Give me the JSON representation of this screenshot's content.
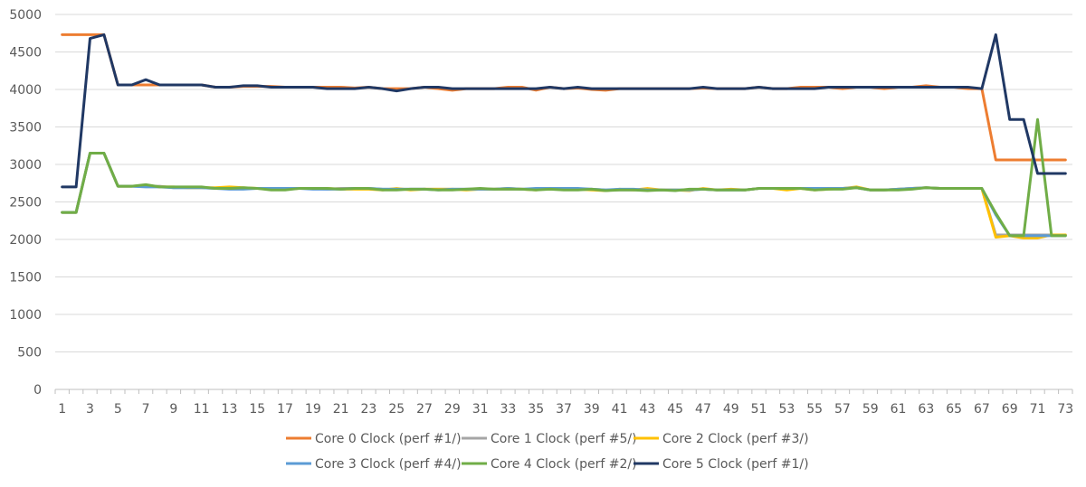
{
  "chart_data": {
    "type": "line",
    "title": "",
    "xlabel": "",
    "ylabel": "",
    "x": [
      1,
      2,
      3,
      4,
      5,
      6,
      7,
      8,
      9,
      10,
      11,
      12,
      13,
      14,
      15,
      16,
      17,
      18,
      19,
      20,
      21,
      22,
      23,
      24,
      25,
      26,
      27,
      28,
      29,
      30,
      31,
      32,
      33,
      34,
      35,
      36,
      37,
      38,
      39,
      40,
      41,
      42,
      43,
      44,
      45,
      46,
      47,
      48,
      49,
      50,
      51,
      52,
      53,
      54,
      55,
      56,
      57,
      58,
      59,
      60,
      61,
      62,
      63,
      64,
      65,
      66,
      67,
      68,
      69,
      70,
      71,
      72,
      73
    ],
    "x_tick_labels": [
      "1",
      "3",
      "5",
      "7",
      "9",
      "11",
      "13",
      "15",
      "17",
      "19",
      "21",
      "23",
      "25",
      "27",
      "29",
      "31",
      "33",
      "35",
      "37",
      "39",
      "41",
      "43",
      "45",
      "47",
      "49",
      "51",
      "53",
      "55",
      "57",
      "59",
      "61",
      "63",
      "65",
      "67",
      "69",
      "71",
      "73"
    ],
    "ylim": [
      0,
      5000
    ],
    "y_ticks": [
      "0",
      "500",
      "1000",
      "1500",
      "2000",
      "2500",
      "3000",
      "3500",
      "4000",
      "4500",
      "5000"
    ],
    "grid": "horizontal",
    "legend_position": "bottom",
    "series": [
      {
        "name": "Core 0 Clock (perf #1/)",
        "color": "#ED7D31",
        "values": [
          4730,
          4730,
          4730,
          4730,
          4060,
          4060,
          4060,
          4060,
          4060,
          4060,
          4060,
          4030,
          4030,
          4040,
          4040,
          4040,
          4030,
          4030,
          4030,
          4030,
          4030,
          4020,
          4030,
          4010,
          4010,
          4010,
          4030,
          4010,
          3990,
          4010,
          4010,
          4010,
          4030,
          4030,
          3990,
          4030,
          4010,
          4020,
          4000,
          3990,
          4010,
          4010,
          4010,
          4010,
          4010,
          4010,
          4020,
          4010,
          4010,
          4010,
          4030,
          4010,
          4010,
          4030,
          4030,
          4030,
          4010,
          4030,
          4030,
          4010,
          4030,
          4030,
          4050,
          4030,
          4030,
          4010,
          4010,
          3060,
          3060,
          3060,
          3060,
          3060,
          3060
        ]
      },
      {
        "name": "Core 1 Clock (perf #5/)",
        "color": "#A5A5A5",
        "values": [
          2360,
          2360,
          3150,
          3150,
          2710,
          2710,
          2710,
          2710,
          2690,
          2690,
          2690,
          2680,
          2680,
          2680,
          2680,
          2670,
          2670,
          2680,
          2680,
          2670,
          2680,
          2680,
          2680,
          2670,
          2670,
          2670,
          2670,
          2670,
          2670,
          2670,
          2670,
          2670,
          2670,
          2670,
          2670,
          2680,
          2670,
          2670,
          2670,
          2660,
          2660,
          2660,
          2660,
          2660,
          2660,
          2660,
          2670,
          2660,
          2660,
          2660,
          2680,
          2680,
          2680,
          2680,
          2680,
          2680,
          2680,
          2690,
          2660,
          2660,
          2670,
          2680,
          2690,
          2680,
          2680,
          2680,
          2680,
          2060,
          2060,
          2060,
          2060,
          2060,
          2060
        ]
      },
      {
        "name": "Core 2 Clock (perf #3/)",
        "color": "#FFC000",
        "values": [
          2360,
          2360,
          3150,
          3150,
          2710,
          2710,
          2720,
          2700,
          2700,
          2690,
          2690,
          2690,
          2700,
          2690,
          2680,
          2680,
          2670,
          2680,
          2680,
          2680,
          2670,
          2670,
          2670,
          2660,
          2680,
          2660,
          2670,
          2670,
          2670,
          2660,
          2670,
          2670,
          2680,
          2670,
          2660,
          2680,
          2670,
          2670,
          2660,
          2650,
          2670,
          2660,
          2680,
          2660,
          2660,
          2650,
          2680,
          2660,
          2670,
          2660,
          2680,
          2680,
          2660,
          2680,
          2660,
          2670,
          2680,
          2700,
          2660,
          2660,
          2670,
          2680,
          2690,
          2680,
          2680,
          2680,
          2680,
          2030,
          2050,
          2020,
          2020,
          2060,
          2060
        ]
      },
      {
        "name": "Core 3 Clock (perf #4/)",
        "color": "#5B9BD5",
        "values": [
          2360,
          2360,
          3150,
          3150,
          2710,
          2710,
          2700,
          2700,
          2690,
          2690,
          2690,
          2680,
          2670,
          2670,
          2680,
          2680,
          2680,
          2680,
          2670,
          2670,
          2670,
          2680,
          2680,
          2670,
          2670,
          2670,
          2670,
          2660,
          2670,
          2670,
          2670,
          2670,
          2680,
          2670,
          2680,
          2680,
          2680,
          2680,
          2670,
          2660,
          2670,
          2670,
          2660,
          2660,
          2660,
          2660,
          2670,
          2660,
          2660,
          2660,
          2680,
          2680,
          2680,
          2680,
          2680,
          2680,
          2680,
          2690,
          2660,
          2660,
          2670,
          2680,
          2690,
          2680,
          2680,
          2680,
          2680,
          2330,
          2050,
          2050,
          2050,
          2050,
          2050
        ]
      },
      {
        "name": "Core 4 Clock (perf #2/)",
        "color": "#70AD47",
        "values": [
          2360,
          2360,
          3150,
          3150,
          2710,
          2710,
          2730,
          2700,
          2700,
          2700,
          2700,
          2680,
          2680,
          2690,
          2680,
          2660,
          2660,
          2680,
          2680,
          2680,
          2670,
          2680,
          2680,
          2660,
          2660,
          2670,
          2670,
          2660,
          2660,
          2670,
          2680,
          2670,
          2670,
          2670,
          2660,
          2670,
          2660,
          2660,
          2670,
          2650,
          2660,
          2660,
          2650,
          2660,
          2650,
          2670,
          2670,
          2660,
          2660,
          2660,
          2680,
          2680,
          2680,
          2680,
          2660,
          2670,
          2670,
          2690,
          2660,
          2660,
          2660,
          2670,
          2690,
          2680,
          2680,
          2680,
          2680,
          2350,
          2050,
          2050,
          3600,
          2050,
          2050
        ]
      },
      {
        "name": "Core 5 Clock (perf #1/)",
        "color": "#203864",
        "values": [
          2700,
          2700,
          4680,
          4730,
          4060,
          4060,
          4130,
          4060,
          4060,
          4060,
          4060,
          4030,
          4030,
          4050,
          4050,
          4030,
          4030,
          4030,
          4030,
          4010,
          4010,
          4010,
          4030,
          4010,
          3980,
          4010,
          4030,
          4030,
          4010,
          4010,
          4010,
          4010,
          4010,
          4010,
          4010,
          4030,
          4010,
          4030,
          4010,
          4010,
          4010,
          4010,
          4010,
          4010,
          4010,
          4010,
          4030,
          4010,
          4010,
          4010,
          4030,
          4010,
          4010,
          4010,
          4010,
          4030,
          4030,
          4030,
          4030,
          4030,
          4030,
          4030,
          4030,
          4030,
          4030,
          4030,
          4010,
          4730,
          3600,
          3600,
          2880,
          2880,
          2880
        ]
      }
    ]
  }
}
